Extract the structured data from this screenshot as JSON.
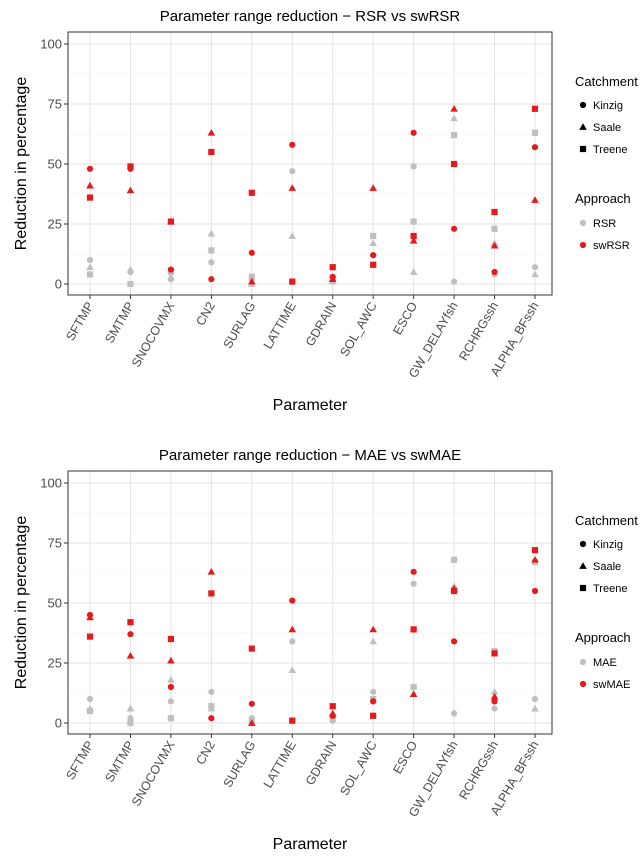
{
  "chart_data": [
    {
      "type": "scatter",
      "title": "Parameter range reduction − RSR vs swRSR",
      "xlabel": "Parameter",
      "ylabel": "Reduction in percentage",
      "ylim": [
        0,
        100
      ],
      "y_ticks": [
        "0",
        "25",
        "50",
        "75",
        "100"
      ],
      "grid": true,
      "legend_position": "right",
      "categories": [
        "SFTMP",
        "SMTMP",
        "SNOCOVMX",
        "CN2",
        "SURLAG",
        "LATTIME",
        "GDRAIN",
        "SOL_AWC",
        "ESCO",
        "GW_DELAYfsh",
        "RCHRGssh",
        "ALPHA_BFssh"
      ],
      "legend": {
        "catchment_title": "Catchment",
        "catchments": [
          "Kinzig",
          "Saale",
          "Treene"
        ],
        "approach_title": "Approach",
        "approaches": [
          "RSR",
          "swRSR"
        ]
      },
      "series": [
        {
          "name": "RSR",
          "color": "#bfbfbf",
          "catchment": "Kinzig",
          "values": [
            10,
            5,
            2,
            9,
            2,
            47,
            1,
            12,
            49,
            1,
            4,
            7
          ]
        },
        {
          "name": "RSR",
          "color": "#bfbfbf",
          "catchment": "Saale",
          "values": [
            7,
            6,
            3,
            21,
            0,
            20,
            1,
            17,
            5,
            69,
            17,
            4
          ]
        },
        {
          "name": "RSR",
          "color": "#bfbfbf",
          "catchment": "Treene",
          "values": [
            4,
            0,
            5,
            14,
            3,
            1,
            2,
            20,
            26,
            62,
            23,
            63
          ]
        },
        {
          "name": "swRSR",
          "color": "#e41a1c",
          "catchment": "Kinzig",
          "values": [
            48,
            48,
            6,
            2,
            13,
            58,
            3,
            12,
            63,
            23,
            5,
            57
          ]
        },
        {
          "name": "swRSR",
          "color": "#e41a1c",
          "catchment": "Saale",
          "values": [
            41,
            39,
            26,
            63,
            1,
            40,
            2,
            40,
            18,
            73,
            16,
            35
          ]
        },
        {
          "name": "swRSR",
          "color": "#e41a1c",
          "catchment": "Treene",
          "values": [
            36,
            49,
            26,
            55,
            38,
            1,
            7,
            8,
            20,
            50,
            30,
            73
          ]
        }
      ]
    },
    {
      "type": "scatter",
      "title": "Parameter range reduction − MAE vs swMAE",
      "xlabel": "Parameter",
      "ylabel": "Reduction in percentage",
      "ylim": [
        0,
        100
      ],
      "y_ticks": [
        "0",
        "25",
        "50",
        "75",
        "100"
      ],
      "grid": true,
      "legend_position": "right",
      "categories": [
        "SFTMP",
        "SMTMP",
        "SNOCOVMX",
        "CN2",
        "SURLAG",
        "LATTIME",
        "GDRAIN",
        "SOL_AWC",
        "ESCO",
        "GW_DELAYfsh",
        "RCHRGssh",
        "ALPHA_BFssh"
      ],
      "legend": {
        "catchment_title": "Catchment",
        "catchments": [
          "Kinzig",
          "Saale",
          "Treene"
        ],
        "approach_title": "Approach",
        "approaches": [
          "MAE",
          "swMAE"
        ]
      },
      "series": [
        {
          "name": "MAE",
          "color": "#bfbfbf",
          "catchment": "Kinzig",
          "values": [
            10,
            2,
            9,
            13,
            2,
            34,
            1,
            13,
            58,
            4,
            6,
            10
          ]
        },
        {
          "name": "MAE",
          "color": "#bfbfbf",
          "catchment": "Saale",
          "values": [
            6,
            6,
            18,
            6,
            0,
            22,
            3,
            34,
            12,
            57,
            13,
            6
          ]
        },
        {
          "name": "MAE",
          "color": "#bfbfbf",
          "catchment": "Treene",
          "values": [
            5,
            0,
            2,
            7,
            1,
            1,
            2,
            10,
            15,
            68,
            30,
            67
          ]
        },
        {
          "name": "swMAE",
          "color": "#e41a1c",
          "catchment": "Kinzig",
          "values": [
            45,
            37,
            15,
            2,
            8,
            51,
            3,
            9,
            63,
            34,
            9,
            55
          ]
        },
        {
          "name": "swMAE",
          "color": "#e41a1c",
          "catchment": "Saale",
          "values": [
            44,
            28,
            26,
            63,
            0,
            39,
            4,
            39,
            12,
            56,
            11,
            68
          ]
        },
        {
          "name": "swMAE",
          "color": "#e41a1c",
          "catchment": "Treene",
          "values": [
            36,
            42,
            35,
            54,
            31,
            1,
            7,
            3,
            39,
            55,
            29,
            72
          ]
        }
      ]
    }
  ]
}
